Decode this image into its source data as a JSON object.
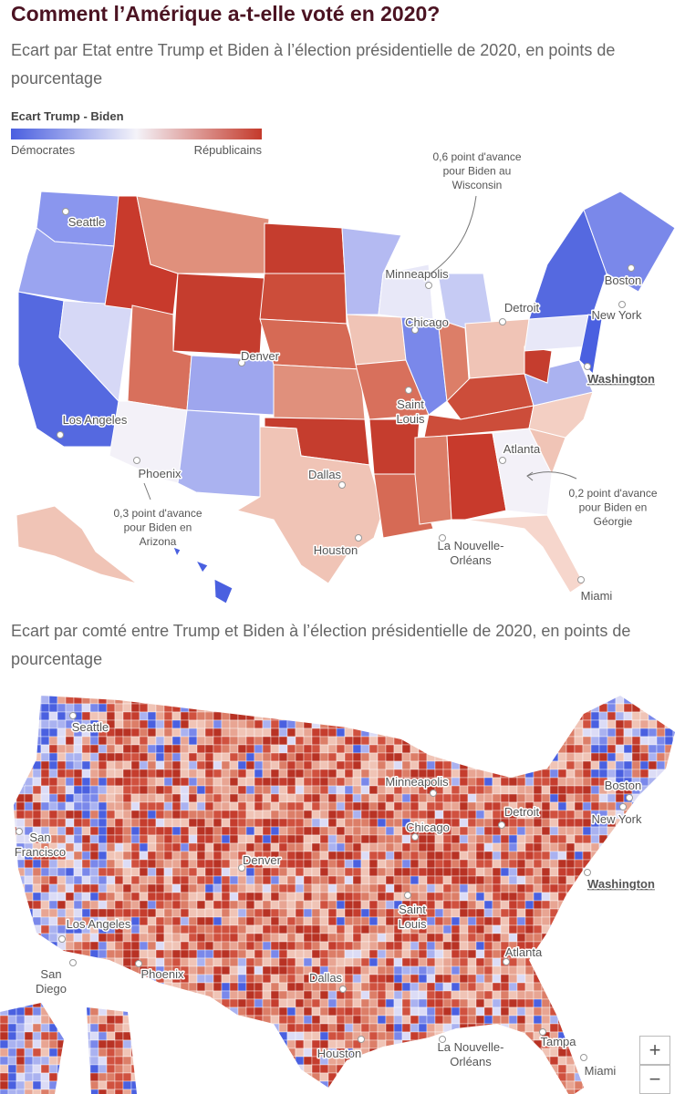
{
  "header": {
    "title": "Comment l’Amérique a-t-elle voté en 2020?",
    "subtitle": "Ecart par Etat entre Trump et Biden à l’élection présidentielle de 2020, en points de pourcentage"
  },
  "legend": {
    "title": "Ecart Trump - Biden",
    "left": "Démocrates",
    "right": "Républicains"
  },
  "state_map": {
    "cities": [
      [
        "Seattle"
      ],
      [
        "Minneapolis"
      ],
      [
        "Boston"
      ],
      [
        "Detroit"
      ],
      [
        "Chicago"
      ],
      [
        "New York"
      ],
      [
        "Denver"
      ],
      [
        "Washington"
      ],
      [
        "Saint",
        "Louis"
      ],
      [
        "Los Angeles"
      ],
      [
        "Atlanta"
      ],
      [
        "Phoenix"
      ],
      [
        "Dallas"
      ],
      [
        "Houston"
      ],
      [
        "La Nouvelle-",
        "Orléans"
      ],
      [
        "Miami"
      ]
    ],
    "annotations": [
      [
        "0,6 point d'avance",
        "pour Biden au",
        "Wisconsin"
      ],
      [
        "0,2 point d'avance",
        "pour Biden en",
        "Géorgie"
      ],
      [
        "0,3 point d'avance",
        "pour Biden en",
        "Arizona"
      ]
    ]
  },
  "county_map": {
    "subtitle": "Ecart par comté entre Trump et Biden à l’élection présidentielle de 2020, en points de pourcentage",
    "cities": [
      [
        "Seattle"
      ],
      [
        "Minneapolis"
      ],
      [
        "Boston"
      ],
      [
        "Detroit"
      ],
      [
        "Chicago"
      ],
      [
        "New York"
      ],
      [
        "San",
        "Francisco"
      ],
      [
        "Denver"
      ],
      [
        "Washington"
      ],
      [
        "Saint",
        "Louis"
      ],
      [
        "Los Angeles"
      ],
      [
        "San",
        "Diego"
      ],
      [
        "Phoenix"
      ],
      [
        "Dallas"
      ],
      [
        "Atlanta"
      ],
      [
        "Houston"
      ],
      [
        "La Nouvelle-",
        "Orléans"
      ],
      [
        "Tampa"
      ],
      [
        "Miami"
      ]
    ]
  },
  "zoom": {
    "in": "+",
    "out": "−"
  }
}
